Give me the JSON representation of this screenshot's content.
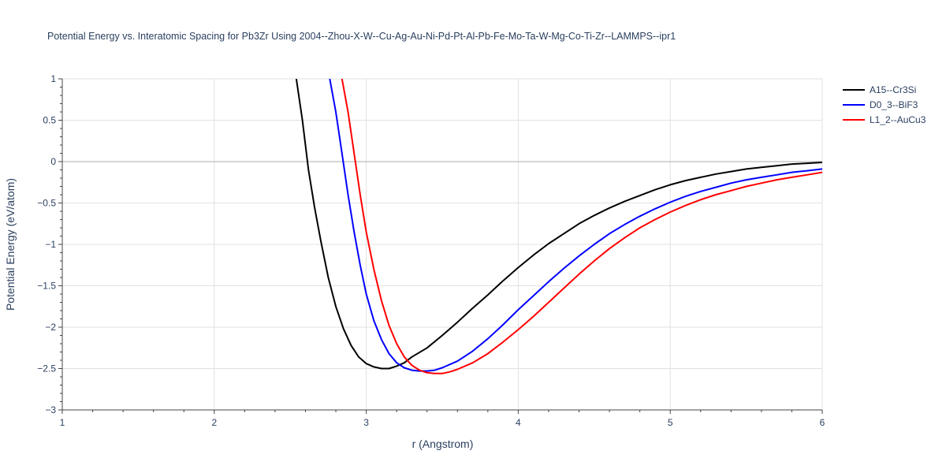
{
  "chart_data": {
    "type": "line",
    "title": "Potential Energy vs. Interatomic Spacing for Pb3Zr Using 2004--Zhou-X-W--Cu-Ag-Au-Ni-Pd-Pt-Al-Pb-Fe-Mo-Ta-W-Mg-Co-Ti-Zr--LAMMPS--ipr1",
    "xlabel": "r (Angstrom)",
    "ylabel": "Potential Energy (eV/atom)",
    "xlim": [
      1,
      6
    ],
    "ylim": [
      -3,
      1
    ],
    "x_ticks": [
      "1",
      "2",
      "3",
      "4",
      "5",
      "6"
    ],
    "y_ticks": [
      "1",
      "0.5",
      "0",
      "−0.5",
      "−1",
      "−1.5",
      "−2",
      "−2.5",
      "−3"
    ],
    "grid": true,
    "legend_position": "top-right",
    "series": [
      {
        "name": "A15--Cr3Si",
        "color": "#000000",
        "points": [
          [
            2.54,
            1.0
          ],
          [
            2.58,
            0.5
          ],
          [
            2.62,
            -0.1
          ],
          [
            2.66,
            -0.55
          ],
          [
            2.7,
            -0.95
          ],
          [
            2.75,
            -1.4
          ],
          [
            2.8,
            -1.75
          ],
          [
            2.85,
            -2.02
          ],
          [
            2.9,
            -2.22
          ],
          [
            2.95,
            -2.36
          ],
          [
            3.0,
            -2.44
          ],
          [
            3.05,
            -2.48
          ],
          [
            3.1,
            -2.5
          ],
          [
            3.15,
            -2.5
          ],
          [
            3.2,
            -2.47
          ],
          [
            3.25,
            -2.43
          ],
          [
            3.3,
            -2.36
          ],
          [
            3.4,
            -2.25
          ],
          [
            3.5,
            -2.1
          ],
          [
            3.6,
            -1.94
          ],
          [
            3.7,
            -1.77
          ],
          [
            3.8,
            -1.61
          ],
          [
            3.9,
            -1.44
          ],
          [
            4.0,
            -1.28
          ],
          [
            4.1,
            -1.13
          ],
          [
            4.2,
            -0.99
          ],
          [
            4.3,
            -0.87
          ],
          [
            4.4,
            -0.75
          ],
          [
            4.5,
            -0.65
          ],
          [
            4.6,
            -0.56
          ],
          [
            4.7,
            -0.48
          ],
          [
            4.8,
            -0.41
          ],
          [
            4.9,
            -0.34
          ],
          [
            5.0,
            -0.28
          ],
          [
            5.1,
            -0.23
          ],
          [
            5.2,
            -0.19
          ],
          [
            5.3,
            -0.15
          ],
          [
            5.4,
            -0.12
          ],
          [
            5.5,
            -0.09
          ],
          [
            5.6,
            -0.07
          ],
          [
            5.7,
            -0.05
          ],
          [
            5.8,
            -0.03
          ],
          [
            5.9,
            -0.02
          ],
          [
            6.0,
            -0.01
          ]
        ]
      },
      {
        "name": "D0_3--BiF3",
        "color": "#0000ff",
        "points": [
          [
            2.76,
            1.0
          ],
          [
            2.8,
            0.6
          ],
          [
            2.84,
            0.1
          ],
          [
            2.88,
            -0.4
          ],
          [
            2.92,
            -0.85
          ],
          [
            2.96,
            -1.25
          ],
          [
            3.0,
            -1.6
          ],
          [
            3.05,
            -1.92
          ],
          [
            3.1,
            -2.15
          ],
          [
            3.15,
            -2.32
          ],
          [
            3.2,
            -2.43
          ],
          [
            3.25,
            -2.49
          ],
          [
            3.3,
            -2.52
          ],
          [
            3.35,
            -2.53
          ],
          [
            3.4,
            -2.53
          ],
          [
            3.45,
            -2.52
          ],
          [
            3.5,
            -2.49
          ],
          [
            3.6,
            -2.41
          ],
          [
            3.7,
            -2.29
          ],
          [
            3.8,
            -2.14
          ],
          [
            3.9,
            -1.97
          ],
          [
            4.0,
            -1.79
          ],
          [
            4.1,
            -1.62
          ],
          [
            4.2,
            -1.45
          ],
          [
            4.3,
            -1.29
          ],
          [
            4.4,
            -1.14
          ],
          [
            4.5,
            -1.0
          ],
          [
            4.6,
            -0.87
          ],
          [
            4.7,
            -0.76
          ],
          [
            4.8,
            -0.66
          ],
          [
            4.9,
            -0.57
          ],
          [
            5.0,
            -0.49
          ],
          [
            5.1,
            -0.42
          ],
          [
            5.2,
            -0.36
          ],
          [
            5.3,
            -0.31
          ],
          [
            5.4,
            -0.26
          ],
          [
            5.5,
            -0.22
          ],
          [
            5.6,
            -0.19
          ],
          [
            5.7,
            -0.16
          ],
          [
            5.8,
            -0.13
          ],
          [
            5.9,
            -0.11
          ],
          [
            6.0,
            -0.09
          ]
        ]
      },
      {
        "name": "L1_2--AuCu3",
        "color": "#ff0000",
        "points": [
          [
            2.84,
            1.0
          ],
          [
            2.88,
            0.6
          ],
          [
            2.92,
            0.1
          ],
          [
            2.96,
            -0.4
          ],
          [
            3.0,
            -0.85
          ],
          [
            3.05,
            -1.3
          ],
          [
            3.1,
            -1.68
          ],
          [
            3.15,
            -1.98
          ],
          [
            3.2,
            -2.2
          ],
          [
            3.25,
            -2.36
          ],
          [
            3.3,
            -2.46
          ],
          [
            3.35,
            -2.52
          ],
          [
            3.4,
            -2.55
          ],
          [
            3.45,
            -2.56
          ],
          [
            3.5,
            -2.56
          ],
          [
            3.55,
            -2.54
          ],
          [
            3.6,
            -2.51
          ],
          [
            3.7,
            -2.43
          ],
          [
            3.8,
            -2.32
          ],
          [
            3.9,
            -2.18
          ],
          [
            4.0,
            -2.03
          ],
          [
            4.1,
            -1.87
          ],
          [
            4.2,
            -1.7
          ],
          [
            4.3,
            -1.53
          ],
          [
            4.4,
            -1.36
          ],
          [
            4.5,
            -1.2
          ],
          [
            4.6,
            -1.05
          ],
          [
            4.7,
            -0.92
          ],
          [
            4.8,
            -0.8
          ],
          [
            4.9,
            -0.7
          ],
          [
            5.0,
            -0.61
          ],
          [
            5.1,
            -0.53
          ],
          [
            5.2,
            -0.46
          ],
          [
            5.3,
            -0.4
          ],
          [
            5.4,
            -0.35
          ],
          [
            5.5,
            -0.3
          ],
          [
            5.6,
            -0.26
          ],
          [
            5.7,
            -0.22
          ],
          [
            5.8,
            -0.19
          ],
          [
            5.9,
            -0.16
          ],
          [
            6.0,
            -0.13
          ]
        ]
      }
    ]
  }
}
